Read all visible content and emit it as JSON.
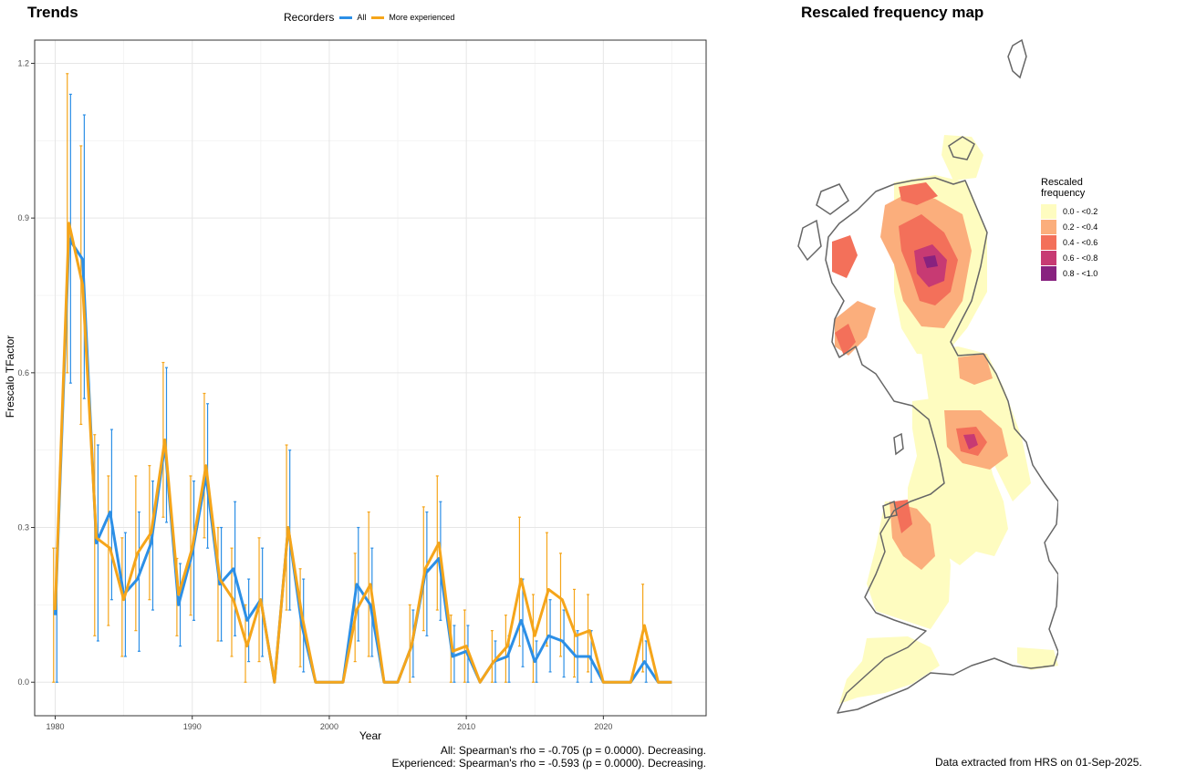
{
  "page": {
    "trends_title": "Trends",
    "map_title": "Rescaled frequency map",
    "stats_all": "All: Spearman's rho = -0.705 (p = 0.0000). Decreasing.",
    "stats_experienced": "Experienced: Spearman's rho = -0.593 (p = 0.0000). Decreasing.",
    "footer": "Data extracted from HRS on 01-Sep-2025."
  },
  "colors": {
    "all": "#2c8fe6",
    "experienced": "#f5a51a",
    "coast": "#666666"
  },
  "chart_data": [
    {
      "type": "line",
      "title": "Trends",
      "xlabel": "Year",
      "ylabel": "Frescalo TFactor",
      "xlim": [
        1978.5,
        2027.5
      ],
      "ylim": [
        -0.065,
        1.245
      ],
      "xticks": [
        1980,
        1990,
        2000,
        2010,
        2020
      ],
      "yticks": [
        0.0,
        0.3,
        0.6,
        0.9,
        1.2
      ],
      "ytick_labels": [
        "0.0",
        "0.3",
        "0.6",
        "0.9",
        "1.2"
      ],
      "grid": true,
      "legend_title": "Recorders",
      "legend_position": "top",
      "x": [
        1980,
        1981,
        1982,
        1983,
        1984,
        1985,
        1986,
        1987,
        1988,
        1989,
        1990,
        1991,
        1992,
        1993,
        1994,
        1995,
        1996,
        1997,
        1998,
        1999,
        2000,
        2001,
        2002,
        2003,
        2004,
        2005,
        2006,
        2007,
        2008,
        2009,
        2010,
        2011,
        2012,
        2013,
        2014,
        2015,
        2016,
        2017,
        2018,
        2019,
        2020,
        2021,
        2022,
        2023,
        2024,
        2025
      ],
      "series": [
        {
          "name": "All",
          "values": [
            0.13,
            0.86,
            0.82,
            0.27,
            0.33,
            0.17,
            0.2,
            0.27,
            0.46,
            0.15,
            0.25,
            0.4,
            0.19,
            0.22,
            0.12,
            0.16,
            0.0,
            0.3,
            0.11,
            0.0,
            0.0,
            0.0,
            0.19,
            0.15,
            0.0,
            0.0,
            0.07,
            0.21,
            0.24,
            0.05,
            0.06,
            0.0,
            0.04,
            0.05,
            0.12,
            0.04,
            0.09,
            0.08,
            0.05,
            0.05,
            0.0,
            0.0,
            0.0,
            0.04,
            0.0,
            0.0
          ],
          "lower": [
            0.0,
            0.58,
            0.55,
            0.08,
            0.16,
            0.05,
            0.06,
            0.14,
            0.31,
            0.07,
            0.12,
            0.26,
            0.08,
            0.09,
            0.04,
            0.05,
            0.0,
            0.14,
            0.02,
            0.0,
            0.0,
            0.0,
            0.08,
            0.05,
            0.0,
            0.0,
            0.01,
            0.09,
            0.12,
            0.0,
            0.0,
            0.0,
            0.0,
            0.0,
            0.03,
            0.0,
            0.02,
            0.01,
            0.0,
            0.0,
            0.0,
            0.0,
            0.0,
            0.0,
            0.0,
            0.0
          ],
          "upper": [
            0.26,
            1.14,
            1.1,
            0.46,
            0.49,
            0.29,
            0.33,
            0.39,
            0.61,
            0.23,
            0.39,
            0.54,
            0.3,
            0.35,
            0.2,
            0.26,
            0.0,
            0.45,
            0.2,
            0.0,
            0.0,
            0.0,
            0.3,
            0.26,
            0.0,
            0.0,
            0.14,
            0.33,
            0.35,
            0.11,
            0.11,
            0.0,
            0.08,
            0.09,
            0.2,
            0.08,
            0.16,
            0.14,
            0.1,
            0.1,
            0.0,
            0.0,
            0.0,
            0.08,
            0.0,
            0.0
          ]
        },
        {
          "name": "More experienced",
          "values": [
            0.14,
            0.89,
            0.77,
            0.28,
            0.26,
            0.16,
            0.25,
            0.29,
            0.47,
            0.17,
            0.26,
            0.42,
            0.2,
            0.16,
            0.07,
            0.16,
            0.0,
            0.3,
            0.13,
            0.0,
            0.0,
            0.0,
            0.14,
            0.19,
            0.0,
            0.0,
            0.07,
            0.22,
            0.27,
            0.06,
            0.07,
            0.0,
            0.04,
            0.07,
            0.2,
            0.09,
            0.18,
            0.16,
            0.09,
            0.1,
            0.0,
            0.0,
            0.0,
            0.11,
            0.0,
            0.0
          ],
          "lower": [
            0.0,
            0.6,
            0.5,
            0.09,
            0.11,
            0.05,
            0.1,
            0.16,
            0.32,
            0.09,
            0.13,
            0.28,
            0.08,
            0.05,
            0.0,
            0.04,
            0.0,
            0.14,
            0.03,
            0.0,
            0.0,
            0.0,
            0.04,
            0.05,
            0.0,
            0.0,
            0.0,
            0.1,
            0.14,
            0.0,
            0.0,
            0.0,
            0.0,
            0.0,
            0.07,
            0.0,
            0.07,
            0.05,
            0.01,
            0.02,
            0.0,
            0.0,
            0.0,
            0.02,
            0.0,
            0.0
          ],
          "upper": [
            0.26,
            1.18,
            1.04,
            0.48,
            0.4,
            0.28,
            0.4,
            0.42,
            0.62,
            0.24,
            0.4,
            0.56,
            0.3,
            0.26,
            0.15,
            0.28,
            0.0,
            0.46,
            0.22,
            0.0,
            0.0,
            0.0,
            0.25,
            0.33,
            0.0,
            0.0,
            0.15,
            0.34,
            0.4,
            0.13,
            0.14,
            0.0,
            0.1,
            0.13,
            0.32,
            0.17,
            0.29,
            0.25,
            0.18,
            0.17,
            0.0,
            0.0,
            0.0,
            0.19,
            0.0,
            0.0
          ]
        }
      ]
    },
    {
      "type": "heatmap",
      "title": "Rescaled frequency map",
      "legend_title": "Rescaled frequency",
      "legend_position": "right",
      "classes": [
        {
          "label": "0.0 - <0.2",
          "color": "#fefcc0"
        },
        {
          "label": "0.2 - <0.4",
          "color": "#fbae7c"
        },
        {
          "label": "0.4 - <0.6",
          "color": "#f3705a"
        },
        {
          "label": "0.6 - <0.8",
          "color": "#c73a73"
        },
        {
          "label": "0.8 - <1.0",
          "color": "#88227f"
        }
      ]
    }
  ]
}
